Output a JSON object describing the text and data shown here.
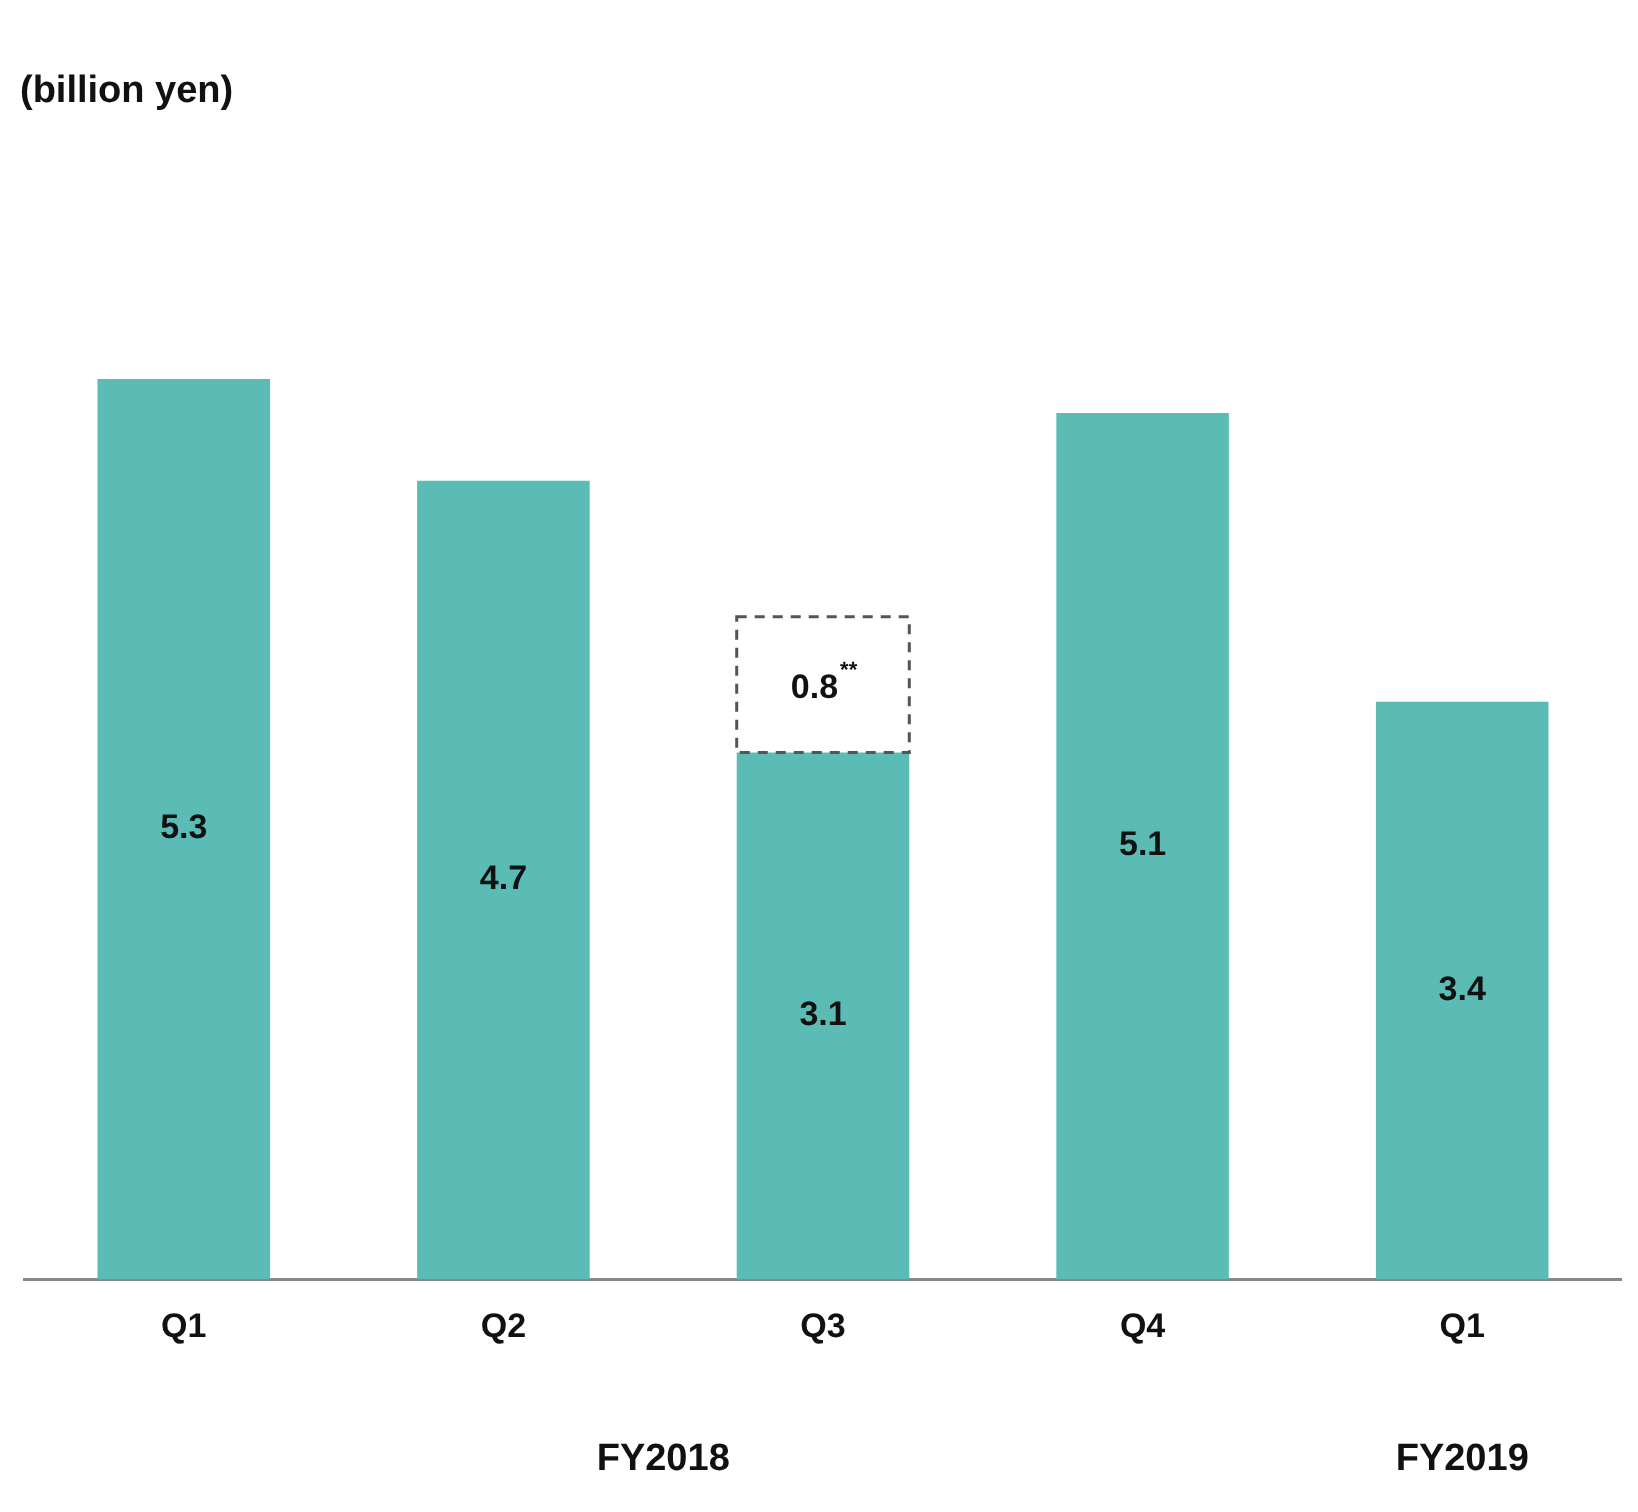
{
  "chart_data": {
    "type": "bar",
    "title": "(billion yen)",
    "categories": [
      "Q1",
      "Q2",
      "Q3",
      "Q4",
      "Q1"
    ],
    "series": [
      {
        "color": "#5bbcb6",
        "values": [
          5.3,
          4.7,
          3.1,
          5.1,
          3.4
        ]
      },
      {
        "color": "#ffffff",
        "line_style": "dashed",
        "values": [
          null,
          null,
          0.8,
          null,
          null
        ],
        "value_labels": [
          null,
          null,
          "0.8$^{**}$",
          null,
          null
        ]
      }
    ],
    "stacked": true,
    "data_labels": true,
    "tick_labels": "x",
    "grid": false,
    "legend": false,
    "annotations": [
      "FY2018",
      "FY2019"
    ]
  }
}
